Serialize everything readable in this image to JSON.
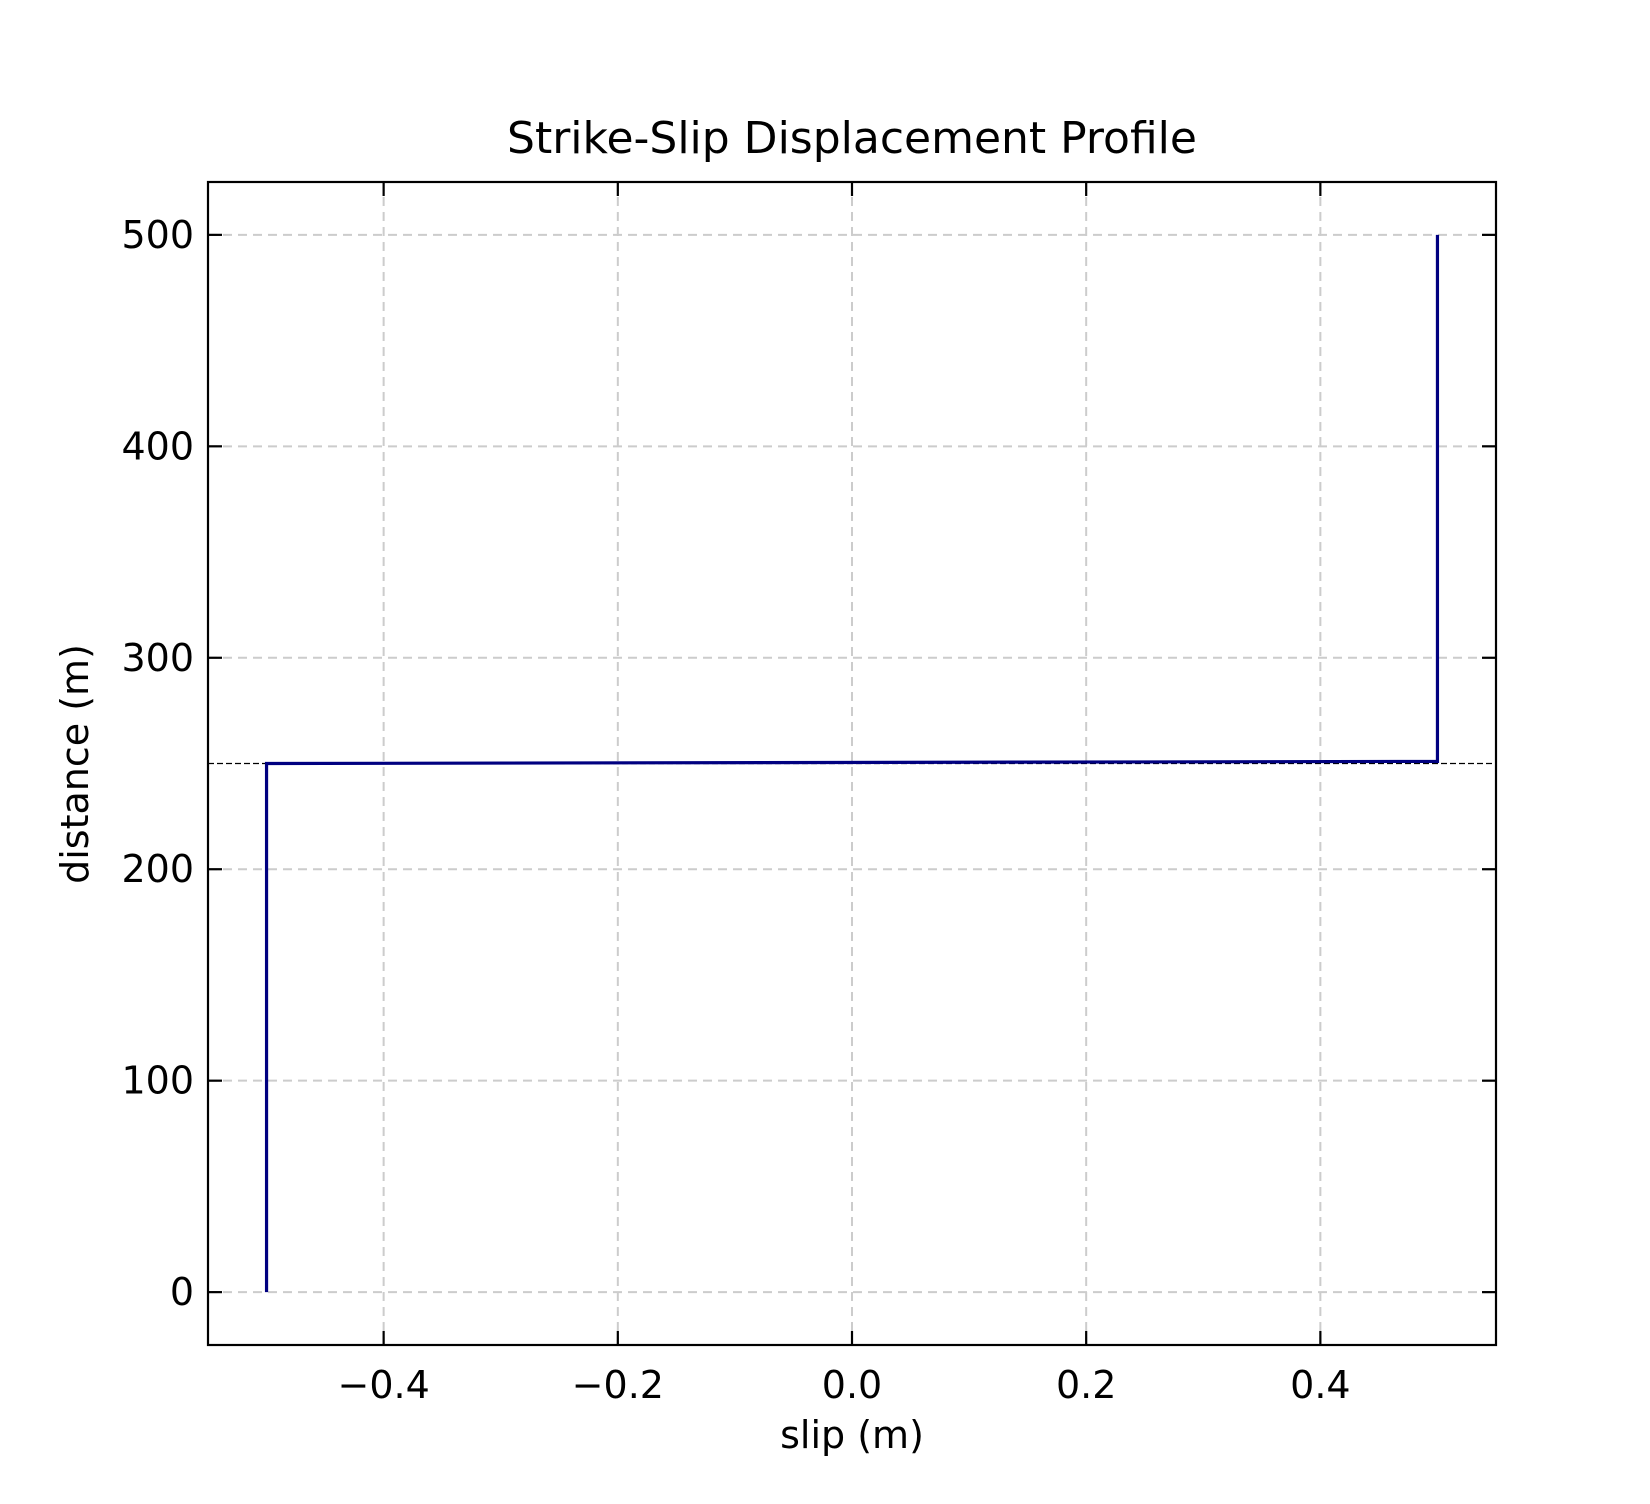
{
  "chart_data": {
    "type": "line",
    "title": "Strike-Slip Displacement Profile",
    "xlabel": "slip (m)",
    "ylabel": "distance (m)",
    "xlim": [
      -0.55,
      0.55
    ],
    "ylim": [
      -25,
      525
    ],
    "x_ticks": [
      -0.4,
      -0.2,
      0.0,
      0.2,
      0.4
    ],
    "x_tick_labels": [
      "−0.4",
      "−0.2",
      "0.0",
      "0.2",
      "0.4"
    ],
    "y_ticks": [
      0,
      100,
      200,
      300,
      400,
      500
    ],
    "y_tick_labels": [
      "0",
      "100",
      "200",
      "300",
      "400",
      "500"
    ],
    "grid": true,
    "series": [
      {
        "color": "#000080",
        "x": [
          -0.5,
          -0.5,
          -0.5,
          0.5,
          0.5,
          0.5
        ],
        "y": [
          0,
          100,
          250,
          251,
          400,
          500
        ]
      }
    ],
    "reference_lines": [
      {
        "orientation": "horizontal",
        "y": 250,
        "style": "dashed",
        "color": "#000000"
      }
    ]
  }
}
